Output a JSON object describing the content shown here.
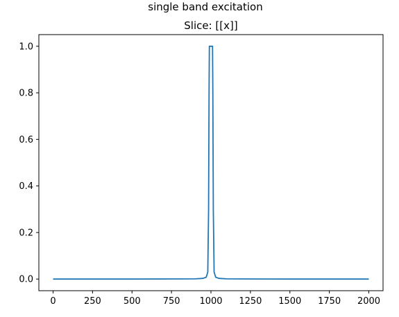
{
  "figure": {
    "suptitle": "single band excitation"
  },
  "chart_data": {
    "type": "line",
    "title": "Slice: [[x]]",
    "xlabel": "",
    "ylabel": "",
    "xlim": [
      -90,
      2090
    ],
    "ylim": [
      -0.05,
      1.05
    ],
    "xticks": [
      0,
      250,
      500,
      750,
      1000,
      1250,
      1500,
      1750,
      2000
    ],
    "xtick_labels": [
      "0",
      "250",
      "500",
      "750",
      "1000",
      "1250",
      "1500",
      "1750",
      "2000"
    ],
    "yticks": [
      0.0,
      0.2,
      0.4,
      0.6,
      0.8,
      1.0
    ],
    "ytick_labels": [
      "0.0",
      "0.2",
      "0.4",
      "0.6",
      "0.8",
      "1.0"
    ],
    "grid": false,
    "series": [
      {
        "color": "#1f77b4",
        "x": [
          0,
          500,
          800,
          900,
          950,
          970,
          980,
          985,
          988,
          990,
          993,
          1000,
          1007,
          1010,
          1012,
          1015,
          1020,
          1030,
          1050,
          1100,
          1200,
          1500,
          2000
        ],
        "y": [
          0.0,
          0.0,
          0.0005,
          0.001,
          0.003,
          0.008,
          0.03,
          0.3,
          0.8,
          1.0,
          1.0,
          1.0,
          1.0,
          1.0,
          0.8,
          0.3,
          0.03,
          0.008,
          0.003,
          0.001,
          0.0005,
          0.0,
          0.0
        ]
      }
    ]
  }
}
